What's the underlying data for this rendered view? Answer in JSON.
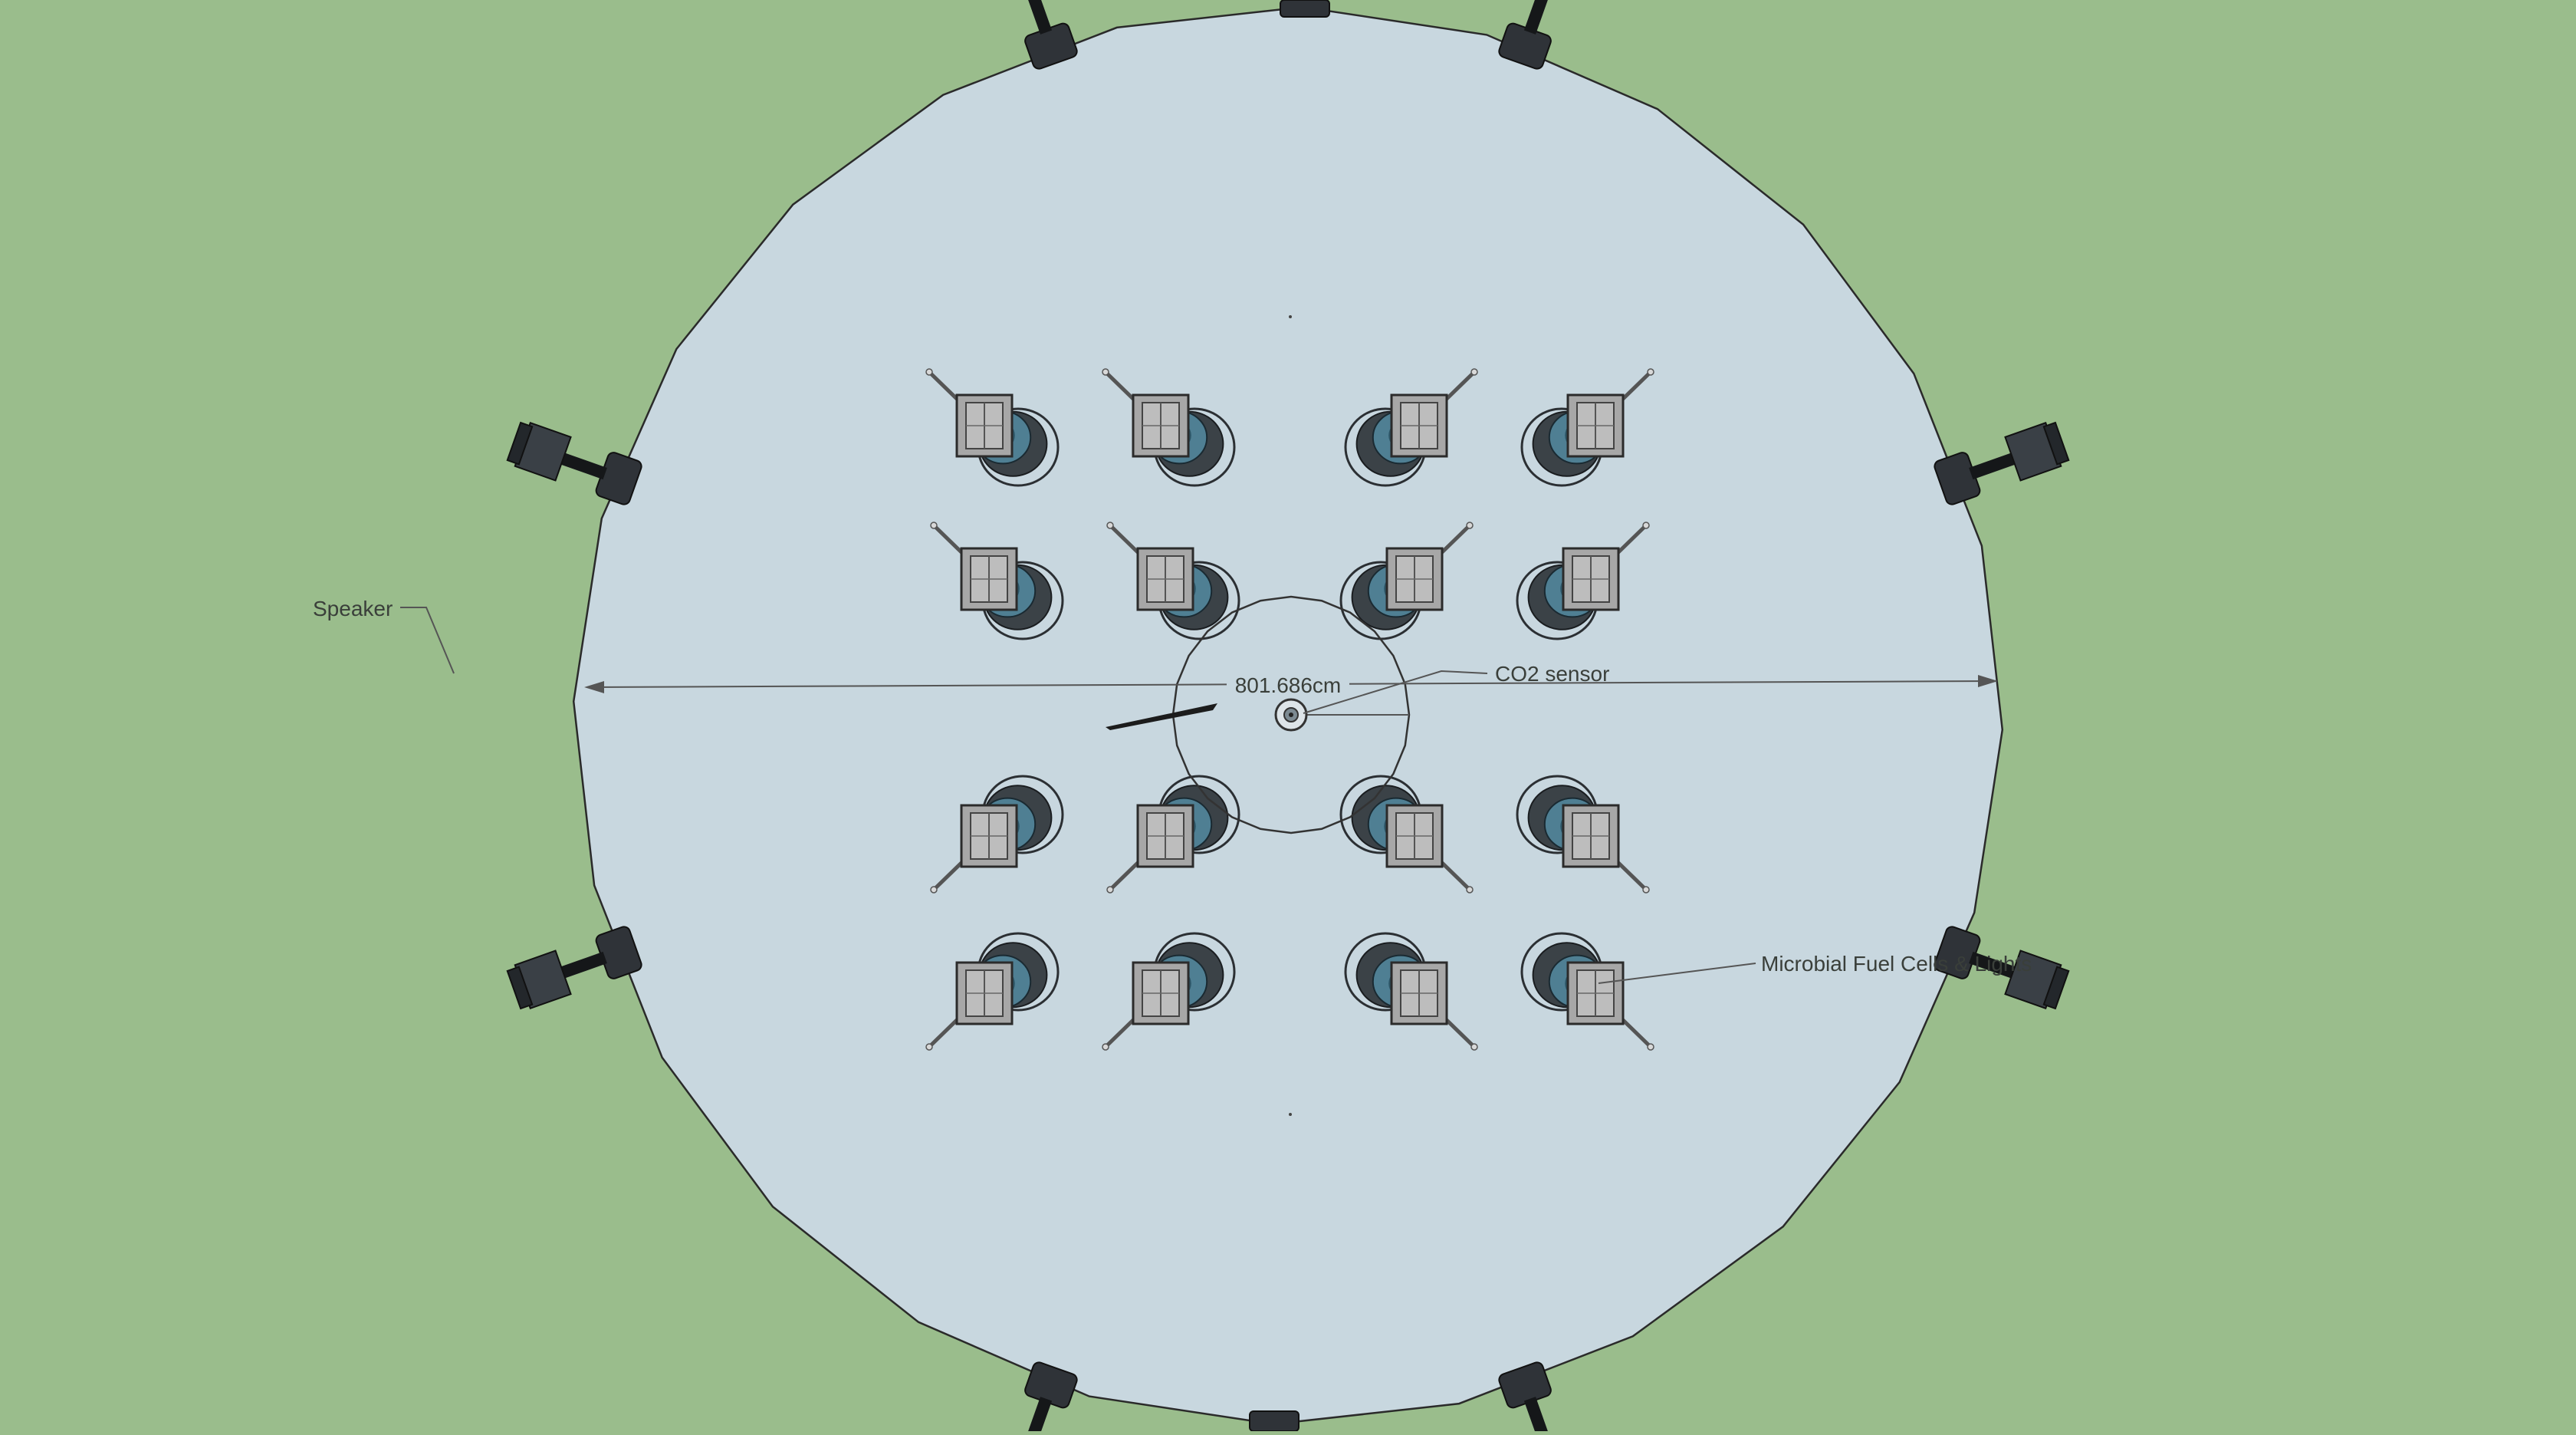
{
  "labels": {
    "speaker": "Speaker",
    "dimension": "801.686cm",
    "co2_sensor": "CO2 sensor",
    "fuel_cells": "Microbial Fuel Cells & Lights"
  },
  "colors": {
    "background": "#9abd8c",
    "floor": "#c8d7df",
    "outline": "#2a2a2a",
    "speaker": "#2f3338",
    "cell_cap": "#a7a7a7",
    "cell_body": "#4f7f93",
    "cell_shadow": "#3b4247"
  },
  "counts": {
    "speakers": 8,
    "fuel_cells": 16
  }
}
